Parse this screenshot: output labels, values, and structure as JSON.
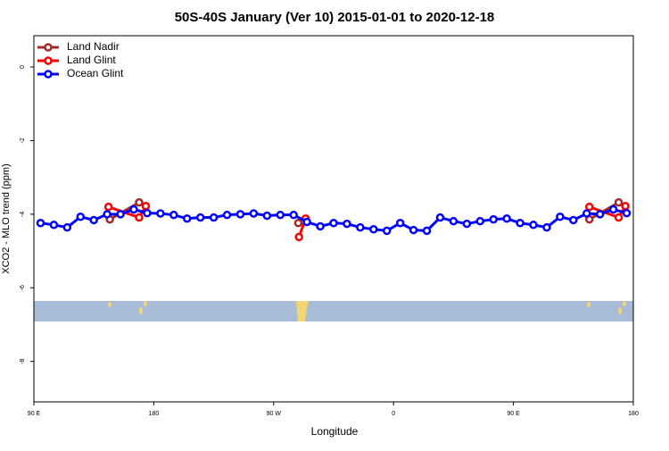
{
  "chart_data": {
    "type": "line",
    "title": "50S-40S January (Ver 10)   2015-01-01 to 2020-12-18",
    "xlabel": "Longitude",
    "ylabel": "XCO2 - MLO trend (ppm)",
    "xlim": [
      90,
      540
    ],
    "ylim": [
      -9.1,
      0.85
    ],
    "xticks": [
      {
        "value": 90,
        "label": "90 E"
      },
      180,
      {
        "value": 270,
        "label": "90 W"
      },
      {
        "value": 360,
        "label": "0"
      },
      {
        "value": 450,
        "label": "90 E"
      },
      {
        "value": 540,
        "label": "180"
      }
    ],
    "yticks": [
      0,
      -2,
      -4,
      -6,
      -8
    ],
    "legend": "top-left",
    "series": [
      {
        "name": "Land Nadir",
        "color": "#a52a2a",
        "x": [
          147,
          169,
          230,
          288.5,
          400,
          507,
          529
        ],
        "values": [
          -4.14,
          -3.68,
          null,
          -4.24,
          null,
          -4.14,
          -3.68
        ]
      },
      {
        "name": "Land Glint",
        "color": "#ff0000",
        "x": [
          146,
          169,
          174,
          230,
          289,
          294,
          400,
          507,
          529,
          534
        ],
        "values": [
          -3.8,
          -4.09,
          -3.78,
          null,
          -4.62,
          -4.12,
          null,
          -3.8,
          -4.09,
          -3.78
        ]
      },
      {
        "name": "Ocean Glint",
        "color": "#0000ff",
        "x": [
          95,
          105,
          115,
          125,
          135,
          145,
          155,
          165,
          175,
          185,
          195,
          205,
          215,
          225,
          235,
          245,
          255,
          265,
          275,
          285,
          295,
          305,
          315,
          325,
          335,
          345,
          355,
          365,
          375,
          385,
          395,
          405,
          415,
          425,
          435,
          445,
          455,
          465,
          475,
          485,
          495,
          505,
          515,
          525,
          535
        ],
        "values": [
          -4.24,
          -4.29,
          -4.36,
          -4.07,
          -4.16,
          -4.0,
          -4.0,
          -3.87,
          -3.97,
          -3.98,
          -4.02,
          -4.12,
          -4.09,
          -4.09,
          -4.02,
          -4.0,
          -3.98,
          -4.04,
          -4.02,
          -4.02,
          -4.21,
          -4.33,
          -4.24,
          -4.26,
          -4.36,
          -4.41,
          -4.45,
          -4.24,
          -4.43,
          -4.45,
          -4.09,
          -4.19,
          -4.26,
          -4.19,
          -4.14,
          -4.12,
          -4.24,
          -4.29,
          -4.36,
          -4.07,
          -4.16,
          -3.98,
          -4.0,
          -3.87,
          -3.97
        ]
      }
    ]
  }
}
